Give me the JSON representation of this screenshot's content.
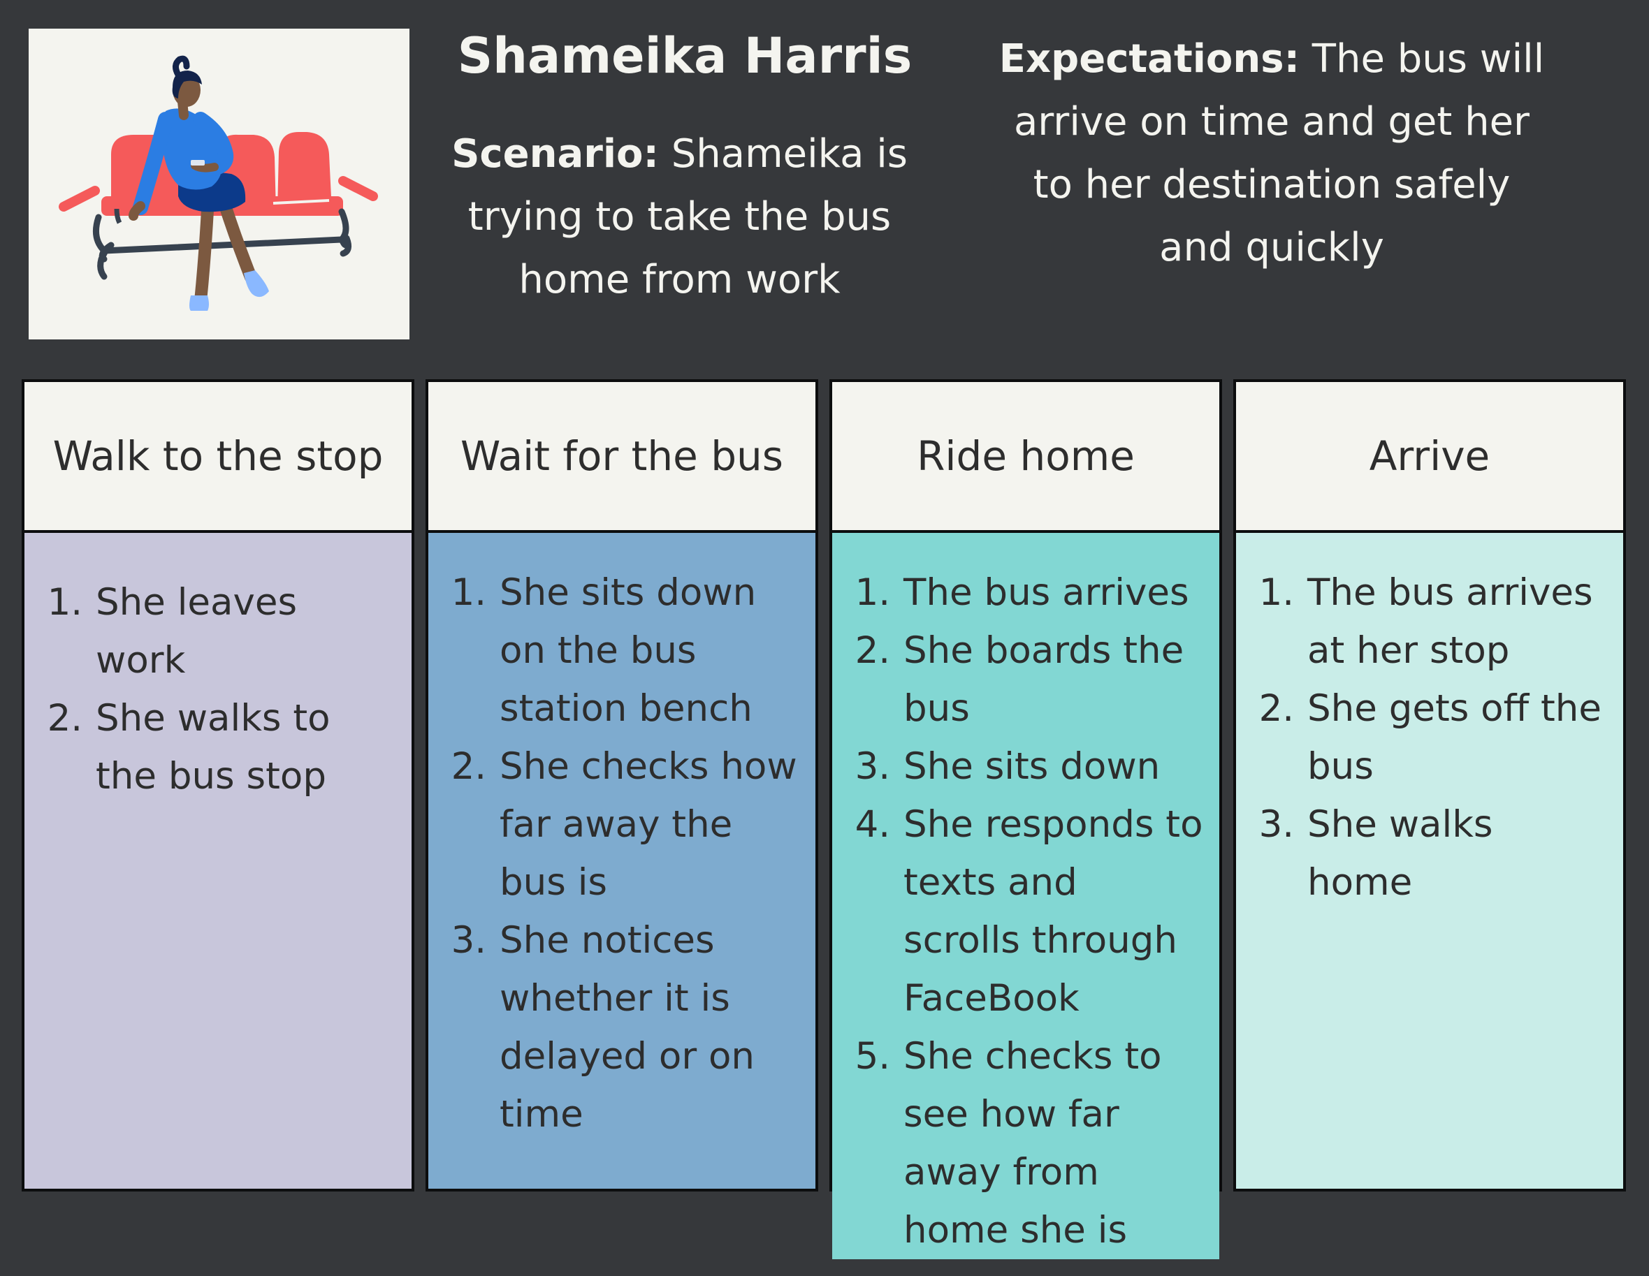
{
  "persona": {
    "name": "Shameika Harris"
  },
  "scenario": {
    "label": "Scenario:",
    "text": "Shameika is trying to take the bus home from work"
  },
  "expectations": {
    "label": "Expectations:",
    "text": "The bus will arrive on time and get her to her destination safely and quickly"
  },
  "stages": [
    {
      "title": "Walk to the stop",
      "steps": [
        "She leaves work",
        "She walks to the bus stop"
      ]
    },
    {
      "title": "Wait for the bus",
      "steps": [
        "She sits down on the bus station bench",
        "She checks how far away the bus is",
        "She notices whether it is delayed or on time"
      ]
    },
    {
      "title": "Ride home",
      "steps": [
        "The bus arrives",
        "She boards the bus",
        "She sits down",
        "She responds to texts and scrolls through FaceBook",
        "She checks to see how far away from home she is"
      ]
    },
    {
      "title": "Arrive",
      "steps": [
        "The bus arrives at her stop",
        "She gets off the bus",
        "She walks home"
      ]
    }
  ],
  "colors": {
    "background": "#36383b",
    "header": "#f4f4ef",
    "stage_1": "#c8c6db",
    "stage_2": "#7eabcf",
    "stage_3": "#82d7d3",
    "stage_4": "#c9ede8",
    "bench": "#f55a5a"
  }
}
